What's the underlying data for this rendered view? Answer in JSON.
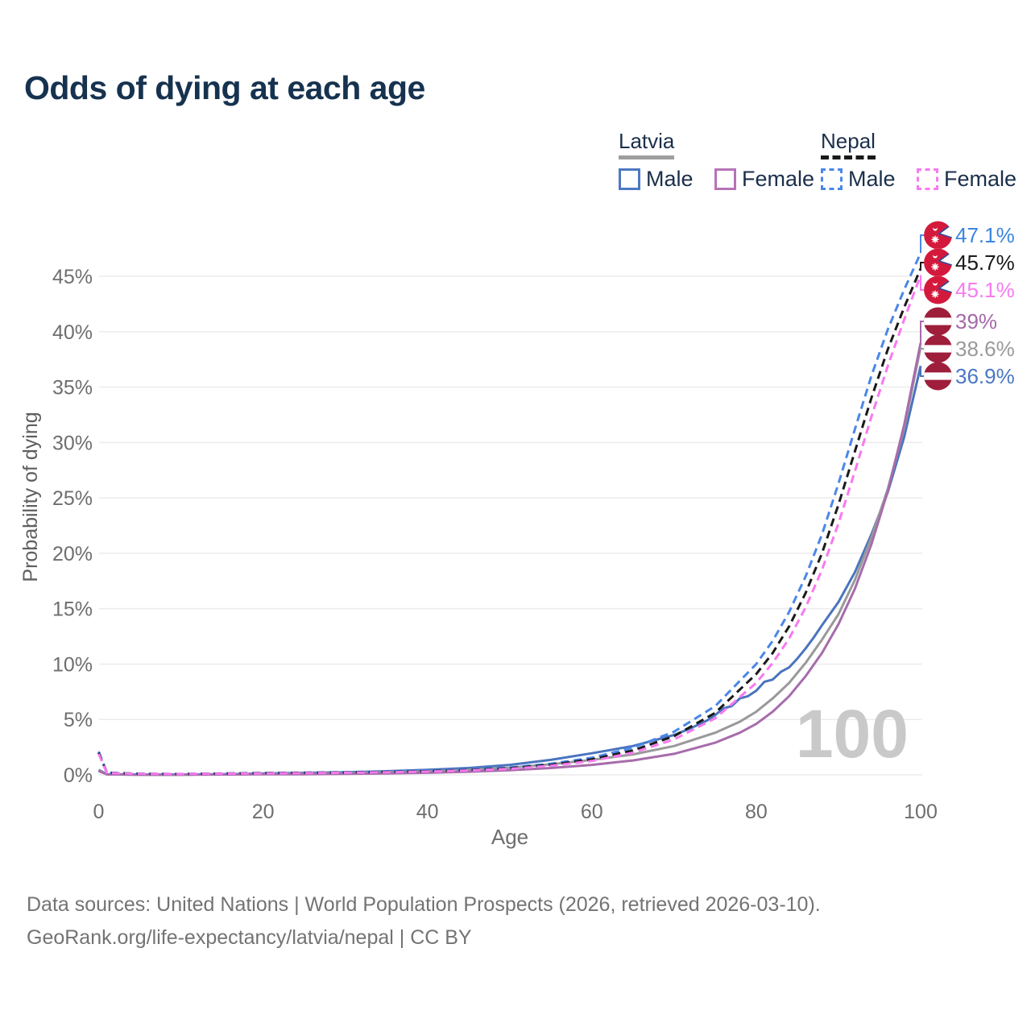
{
  "title": "Odds of dying at each age",
  "legend": {
    "latvia": {
      "label": "Latvia",
      "male": "Male",
      "female": "Female"
    },
    "nepal": {
      "label": "Nepal",
      "male": "Male",
      "female": "Female"
    }
  },
  "footer": {
    "line1": "Data sources: United Nations | World Population Prospects (2026, retrieved 2026-03-10).",
    "line2": "GeoRank.org/life-expectancy/latvia/nepal | CC BY"
  },
  "colors": {
    "title": "#16324f",
    "axis_text": "#6e6e6e",
    "gridline": "#ececec",
    "watermark": "#c9c9c9",
    "latvia_male": "#4a74be",
    "latvia_female": "#a76cab",
    "latvia_total": "#999999",
    "nepal_male": "#4b87e8",
    "nepal_female": "#f879ef",
    "nepal_total": "#1a1a1a",
    "nepal_flag_crimson": "#d41a3c",
    "nepal_flag_blue": "#2a4a9e",
    "latvia_flag_carmine": "#9e1e3c"
  },
  "chart_data": {
    "type": "line",
    "title": "Odds of dying at each age",
    "xlabel": "Age",
    "ylabel": "Probability of dying",
    "watermark": "100",
    "x_axis": {
      "range": [
        0,
        100
      ],
      "ticks": [
        0,
        20,
        40,
        60,
        80,
        100
      ]
    },
    "y_axis": {
      "range_pct": [
        0,
        48
      ],
      "ticks_pct": [
        0,
        5,
        10,
        15,
        20,
        25,
        30,
        35,
        40,
        45
      ],
      "tick_suffix": "%"
    },
    "grid": true,
    "legend_position": "top-right",
    "series": [
      {
        "name": "Latvia Male",
        "country": "Latvia",
        "sex": "male",
        "color": "#4a74be",
        "dash": false,
        "flag": "latvia",
        "end_value": 36.9,
        "end_label": "36.9%",
        "label_color": "#4a77c4",
        "points": [
          [
            0,
            0.45
          ],
          [
            1,
            0.05
          ],
          [
            5,
            0.02
          ],
          [
            10,
            0.02
          ],
          [
            15,
            0.06
          ],
          [
            20,
            0.13
          ],
          [
            25,
            0.18
          ],
          [
            30,
            0.24
          ],
          [
            35,
            0.33
          ],
          [
            40,
            0.45
          ],
          [
            45,
            0.62
          ],
          [
            50,
            0.9
          ],
          [
            55,
            1.35
          ],
          [
            60,
            1.95
          ],
          [
            65,
            2.6
          ],
          [
            70,
            3.6
          ],
          [
            72,
            4.2
          ],
          [
            74,
            4.9
          ],
          [
            75,
            5.4
          ],
          [
            76,
            6.0
          ],
          [
            77,
            6.2
          ],
          [
            78,
            6.9
          ],
          [
            79,
            7.1
          ],
          [
            80,
            7.6
          ],
          [
            81,
            8.4
          ],
          [
            82,
            8.6
          ],
          [
            83,
            9.3
          ],
          [
            84,
            9.7
          ],
          [
            85,
            10.5
          ],
          [
            86,
            11.4
          ],
          [
            87,
            12.4
          ],
          [
            88,
            13.5
          ],
          [
            90,
            15.6
          ],
          [
            92,
            18.3
          ],
          [
            94,
            21.7
          ],
          [
            96,
            25.5
          ],
          [
            98,
            30.5
          ],
          [
            100,
            36.9
          ]
        ]
      },
      {
        "name": "Latvia (both sexes)",
        "country": "Latvia",
        "sex": "total",
        "color": "#999999",
        "dash": false,
        "flag": "latvia",
        "end_value": 38.6,
        "end_label": "38.6%",
        "label_color": "#9a9a9a",
        "points": [
          [
            0,
            0.4
          ],
          [
            1,
            0.045
          ],
          [
            5,
            0.018
          ],
          [
            10,
            0.018
          ],
          [
            15,
            0.045
          ],
          [
            20,
            0.09
          ],
          [
            25,
            0.12
          ],
          [
            30,
            0.16
          ],
          [
            35,
            0.23
          ],
          [
            40,
            0.31
          ],
          [
            45,
            0.44
          ],
          [
            50,
            0.64
          ],
          [
            55,
            0.95
          ],
          [
            60,
            1.35
          ],
          [
            65,
            1.85
          ],
          [
            70,
            2.6
          ],
          [
            75,
            3.8
          ],
          [
            78,
            4.8
          ],
          [
            80,
            5.7
          ],
          [
            82,
            6.9
          ],
          [
            84,
            8.3
          ],
          [
            86,
            10.1
          ],
          [
            88,
            12.2
          ],
          [
            90,
            14.5
          ],
          [
            92,
            17.6
          ],
          [
            94,
            21.4
          ],
          [
            96,
            25.8
          ],
          [
            98,
            31.3
          ],
          [
            100,
            38.6
          ]
        ]
      },
      {
        "name": "Latvia Female",
        "country": "Latvia",
        "sex": "female",
        "color": "#a76cab",
        "dash": false,
        "flag": "latvia",
        "end_value": 39.0,
        "end_label": "39%",
        "label_color": "#a369a8",
        "points": [
          [
            0,
            0.35
          ],
          [
            1,
            0.04
          ],
          [
            5,
            0.015
          ],
          [
            10,
            0.015
          ],
          [
            15,
            0.03
          ],
          [
            20,
            0.05
          ],
          [
            25,
            0.06
          ],
          [
            30,
            0.09
          ],
          [
            35,
            0.13
          ],
          [
            40,
            0.19
          ],
          [
            45,
            0.28
          ],
          [
            50,
            0.42
          ],
          [
            55,
            0.62
          ],
          [
            60,
            0.9
          ],
          [
            65,
            1.3
          ],
          [
            70,
            1.9
          ],
          [
            75,
            2.9
          ],
          [
            78,
            3.8
          ],
          [
            80,
            4.6
          ],
          [
            82,
            5.7
          ],
          [
            84,
            7.1
          ],
          [
            86,
            8.9
          ],
          [
            88,
            11.0
          ],
          [
            90,
            13.6
          ],
          [
            92,
            16.8
          ],
          [
            94,
            20.8
          ],
          [
            96,
            25.6
          ],
          [
            98,
            31.6
          ],
          [
            100,
            39.0
          ]
        ]
      },
      {
        "name": "Nepal Male",
        "country": "Nepal",
        "sex": "male",
        "color": "#4b87e8",
        "dash": true,
        "flag": "nepal",
        "end_value": 47.1,
        "end_label": "47.1%",
        "label_color": "#3b85e0",
        "points": [
          [
            0,
            2.1
          ],
          [
            1,
            0.2
          ],
          [
            5,
            0.1
          ],
          [
            10,
            0.08
          ],
          [
            15,
            0.12
          ],
          [
            20,
            0.17
          ],
          [
            25,
            0.2
          ],
          [
            30,
            0.24
          ],
          [
            35,
            0.29
          ],
          [
            40,
            0.37
          ],
          [
            45,
            0.48
          ],
          [
            50,
            0.66
          ],
          [
            55,
            1.0
          ],
          [
            60,
            1.55
          ],
          [
            65,
            2.45
          ],
          [
            70,
            3.9
          ],
          [
            75,
            6.2
          ],
          [
            80,
            10.0
          ],
          [
            82,
            12.1
          ],
          [
            84,
            14.7
          ],
          [
            86,
            17.9
          ],
          [
            88,
            21.7
          ],
          [
            90,
            26.3
          ],
          [
            92,
            31.2
          ],
          [
            94,
            36.0
          ],
          [
            96,
            40.2
          ],
          [
            98,
            43.8
          ],
          [
            100,
            47.1
          ]
        ]
      },
      {
        "name": "Nepal (both sexes)",
        "country": "Nepal",
        "sex": "total",
        "color": "#1a1a1a",
        "dash": true,
        "flag": "nepal",
        "end_value": 45.7,
        "end_label": "45.7%",
        "label_color": "#1a1a1a",
        "points": [
          [
            0,
            2.0
          ],
          [
            1,
            0.18
          ],
          [
            5,
            0.09
          ],
          [
            10,
            0.075
          ],
          [
            15,
            0.11
          ],
          [
            20,
            0.15
          ],
          [
            25,
            0.18
          ],
          [
            30,
            0.21
          ],
          [
            35,
            0.26
          ],
          [
            40,
            0.33
          ],
          [
            45,
            0.43
          ],
          [
            50,
            0.6
          ],
          [
            55,
            0.9
          ],
          [
            60,
            1.4
          ],
          [
            65,
            2.2
          ],
          [
            70,
            3.5
          ],
          [
            75,
            5.6
          ],
          [
            80,
            9.1
          ],
          [
            82,
            11.0
          ],
          [
            84,
            13.4
          ],
          [
            86,
            16.4
          ],
          [
            88,
            20.0
          ],
          [
            90,
            24.4
          ],
          [
            92,
            29.2
          ],
          [
            94,
            34.0
          ],
          [
            96,
            38.4
          ],
          [
            98,
            42.2
          ],
          [
            100,
            45.7
          ]
        ]
      },
      {
        "name": "Nepal Female",
        "country": "Nepal",
        "sex": "female",
        "color": "#f879ef",
        "dash": true,
        "flag": "nepal",
        "end_value": 45.1,
        "end_label": "45.1%",
        "label_color": "#f87af0",
        "points": [
          [
            0,
            1.9
          ],
          [
            1,
            0.17
          ],
          [
            5,
            0.085
          ],
          [
            10,
            0.07
          ],
          [
            15,
            0.1
          ],
          [
            20,
            0.13
          ],
          [
            25,
            0.16
          ],
          [
            30,
            0.19
          ],
          [
            35,
            0.23
          ],
          [
            40,
            0.3
          ],
          [
            45,
            0.39
          ],
          [
            50,
            0.54
          ],
          [
            55,
            0.82
          ],
          [
            60,
            1.25
          ],
          [
            65,
            2.0
          ],
          [
            70,
            3.2
          ],
          [
            75,
            5.1
          ],
          [
            80,
            8.3
          ],
          [
            82,
            10.1
          ],
          [
            84,
            12.3
          ],
          [
            86,
            15.1
          ],
          [
            88,
            18.5
          ],
          [
            90,
            22.7
          ],
          [
            92,
            27.4
          ],
          [
            94,
            32.3
          ],
          [
            96,
            36.9
          ],
          [
            98,
            41.1
          ],
          [
            100,
            45.1
          ]
        ]
      }
    ]
  }
}
